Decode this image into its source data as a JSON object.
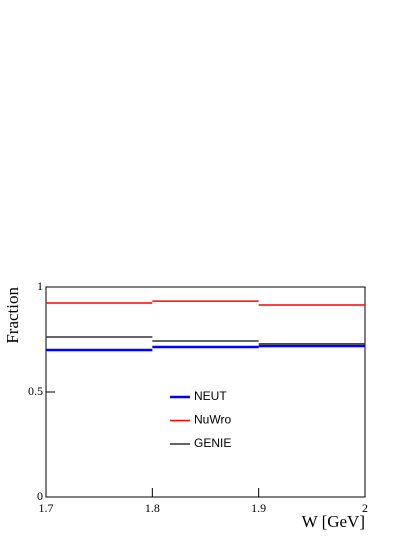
{
  "chart_data": {
    "type": "histogram",
    "xlabel": "W [GeV]",
    "ylabel": "Fraction",
    "bins": [
      1.7,
      1.8,
      1.9,
      2
    ],
    "series": [
      {
        "name": "NEUT",
        "color": "#0000ff",
        "values": [
          0.7,
          0.714,
          0.719
        ]
      },
      {
        "name": "NuWro",
        "color": "#ff0000",
        "values": [
          0.924,
          0.933,
          0.914
        ]
      },
      {
        "name": "GENIE",
        "color": "#333333",
        "values": [
          0.762,
          0.743,
          0.729
        ]
      }
    ],
    "xlim": [
      1.7,
      2
    ],
    "xticks": [
      1.7,
      1.8,
      1.9,
      2
    ],
    "ylim": [
      0,
      1
    ],
    "yticks": [
      0,
      0.5,
      1
    ]
  }
}
